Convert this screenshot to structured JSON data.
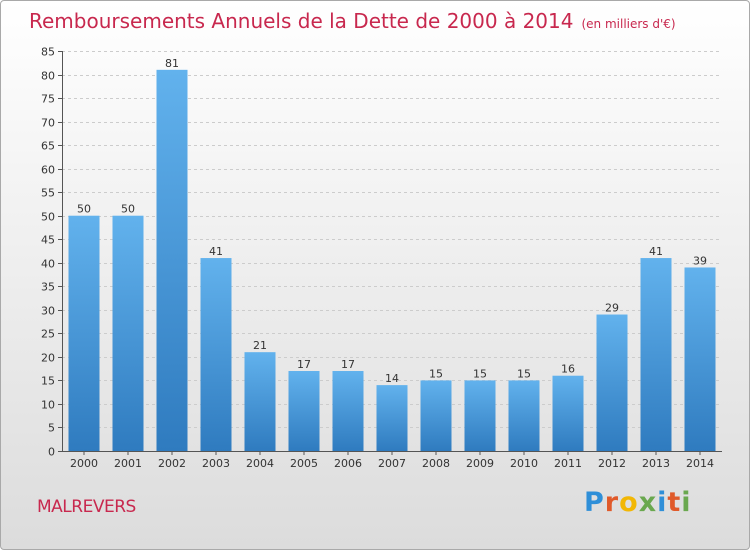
{
  "header": {
    "title": "Remboursements Annuels de la Dette de 2000 à 2014",
    "subtitle": "(en milliers d'€)"
  },
  "footer": {
    "commune": "MALREVERS",
    "logo": "Proxiti"
  },
  "colors": {
    "title": "#c8284e",
    "bar_top": "#62b2ed",
    "bar_bottom": "#2f7bbf",
    "grid": "#cccccc"
  },
  "chart_data": {
    "type": "bar",
    "title": "Remboursements Annuels de la Dette de 2000 à 2014",
    "xlabel": "",
    "ylabel": "",
    "ylim": [
      0,
      85
    ],
    "ytick_step": 5,
    "grid": "horizontal-dashed",
    "categories": [
      "2000",
      "2001",
      "2002",
      "2003",
      "2004",
      "2005",
      "2006",
      "2007",
      "2008",
      "2009",
      "2010",
      "2011",
      "2012",
      "2013",
      "2014"
    ],
    "values": [
      50,
      50,
      81,
      41,
      21,
      17,
      17,
      14,
      15,
      15,
      15,
      16,
      29,
      41,
      39
    ]
  }
}
